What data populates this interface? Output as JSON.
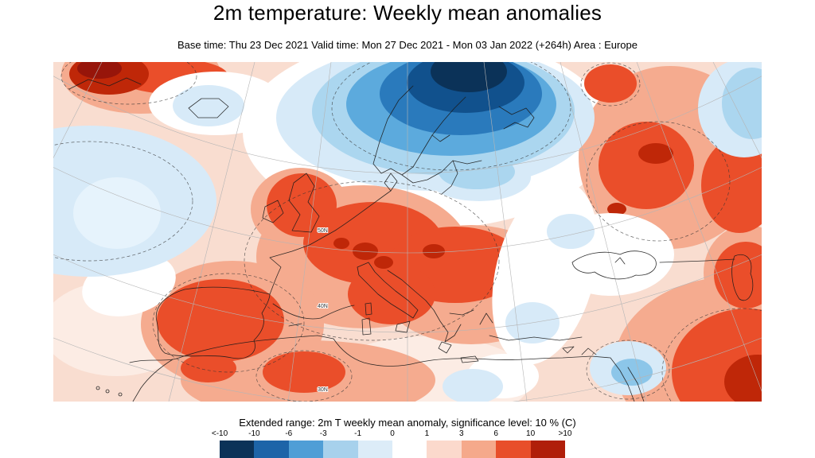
{
  "header": {
    "title": "2m temperature: Weekly mean anomalies",
    "subtitle": "Base time: Thu 23 Dec 2021 Valid time: Mon 27 Dec 2021 - Mon 03 Jan 2022 (+264h) Area : Europe"
  },
  "map": {
    "description": "Filled contour map of 2m temperature weekly mean anomaly over Europe",
    "lat_labels": [
      "50N",
      "40N",
      "30N"
    ],
    "palette": {
      "warm_light": "#f9ddd0",
      "warm_lighter": "#fcece4",
      "warm_salmon": "#f5ab8f",
      "warm_red": "#ea4e2a",
      "warm_dark_red": "#bf2708",
      "warm_deepest_red": "#97150a",
      "white_zone": "#ffffff",
      "cold_pale": "#d7eaf8",
      "cold_lighter_core": "#e6f3fc",
      "cold_light": "#abd6ef",
      "cold_midlight": "#8cc6e9",
      "cold_mid": "#5caadd",
      "cold_deep": "#2a7abc",
      "cold_navy": "#11518d",
      "cold_darkest": "#0b3258"
    }
  },
  "footer": {
    "caption": "Extended range: 2m T weekly mean anomaly, significance level: 10 % (C)"
  },
  "colorbar": {
    "labels": [
      "<-10",
      "-10",
      "-6",
      "-3",
      "-1",
      "0",
      "1",
      "3",
      "6",
      "10",
      ">10"
    ],
    "colors": [
      "#0b3258",
      "#1d64a8",
      "#4f9ed6",
      "#a7d1ec",
      "#dcecf8",
      "#ffffff",
      "#fbd9cc",
      "#f5a98b",
      "#e84e2a",
      "#b01f0a"
    ]
  },
  "chart_data": {
    "type": "heatmap",
    "title": "2m temperature: Weekly mean anomalies",
    "units": "C",
    "scale_boundaries": [
      -10,
      -6,
      -3,
      -1,
      0,
      1,
      3,
      6,
      10
    ],
    "legend_position": "bottom",
    "cold_anomaly_regions": [
      "Scandinavia / Norwegian Sea (strong, < -6 C)",
      "Barents area core (< -10 C)",
      "NW Atlantic",
      "eastern Mediterranean patches"
    ],
    "warm_anomaly_regions": [
      "Western & Central Europe (> 3 C)",
      "Iberia",
      "NW Africa",
      "Western Russia",
      "Middle East / NE Africa (> 3 C)",
      "Greenland edge (> 6 C)"
    ]
  }
}
